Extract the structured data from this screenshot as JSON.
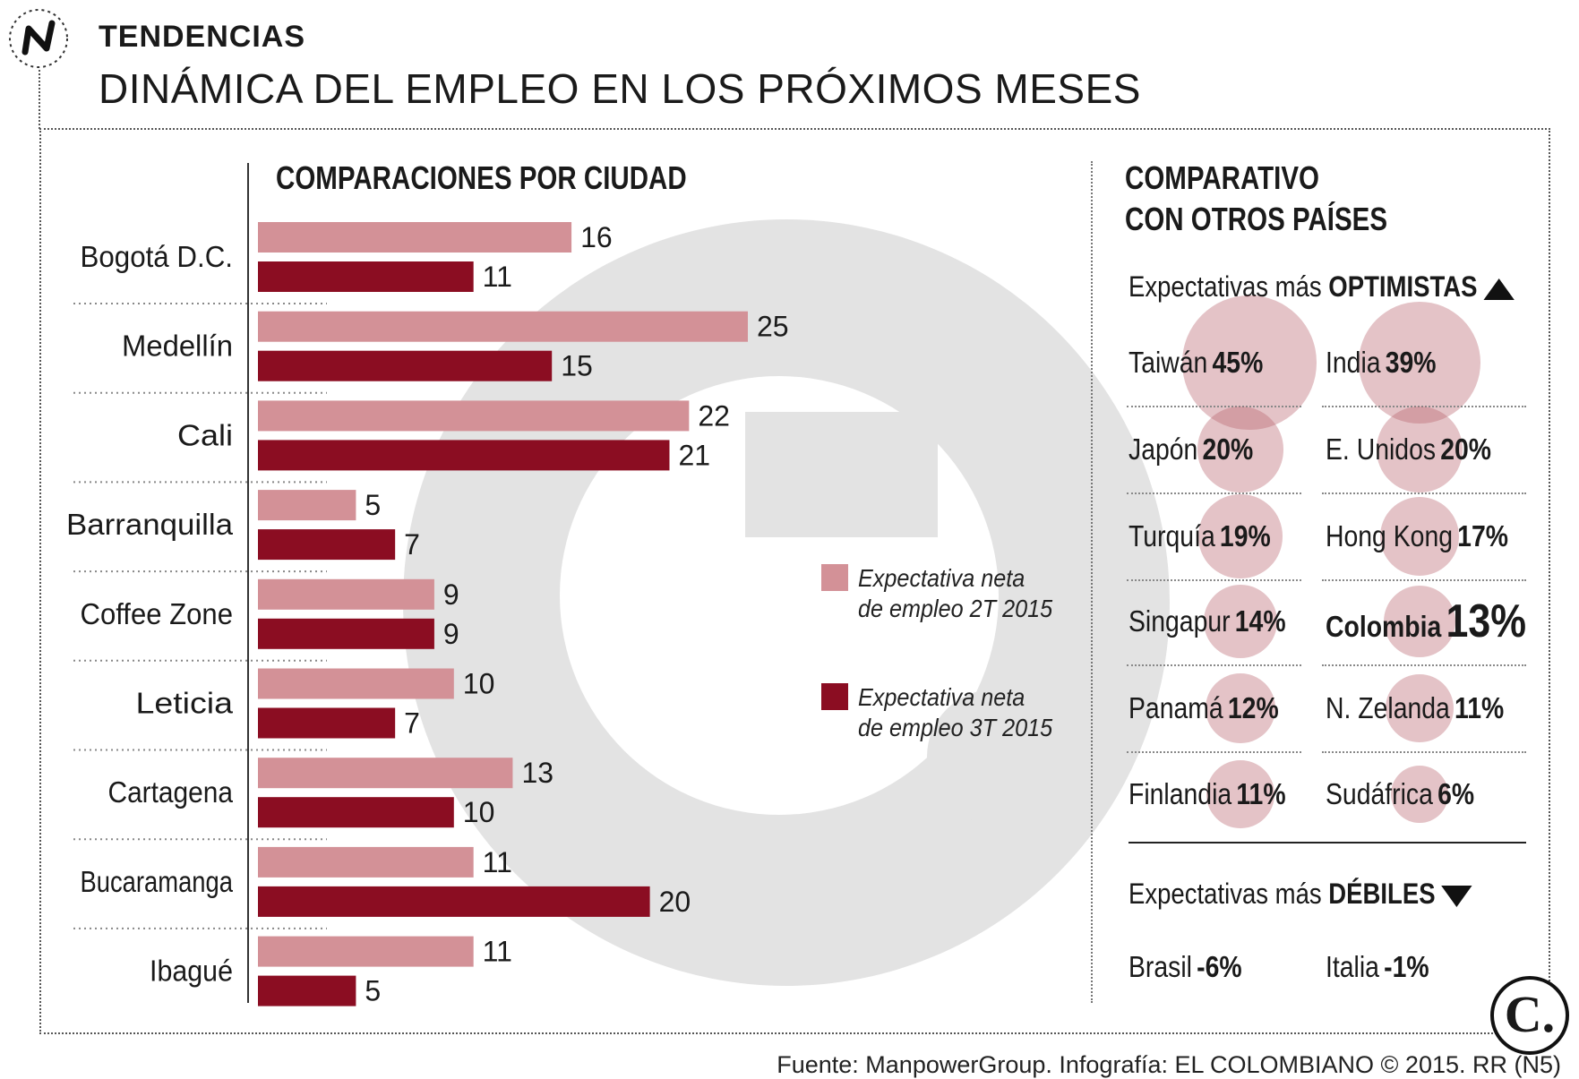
{
  "header": {
    "icon": "trend-line-icon",
    "kicker": "TENDENCIAS",
    "title": "DINÁMICA DEL EMPLEO EN LOS PRÓXIMOS MESES"
  },
  "chart_data": {
    "type": "bar",
    "orientation": "horizontal",
    "title": "COMPARACIONES POR CIUDAD",
    "categories": [
      "Bogotá D.C.",
      "Medellín",
      "Cali",
      "Barranquilla",
      "Coffee Zone",
      "Leticia",
      "Cartagena",
      "Bucaramanga",
      "Ibagué"
    ],
    "series": [
      {
        "name": "Expectativa neta de empleo 2T 2015",
        "color": "#d39197",
        "values": [
          16,
          25,
          22,
          5,
          9,
          10,
          13,
          11,
          11
        ]
      },
      {
        "name": "Expectativa neta de empleo 3T 2015",
        "color": "#8b0d22",
        "values": [
          11,
          15,
          21,
          7,
          9,
          7,
          10,
          20,
          5
        ]
      }
    ],
    "xlim": [
      0,
      25
    ],
    "legend_position": "right",
    "grid": false
  },
  "legend": {
    "q2_line1": "Expectativa neta",
    "q2_line2": "de empleo 2T 2015",
    "q3_line1": "Expectativa neta",
    "q3_line2": "de empleo 3T 2015"
  },
  "countries": {
    "title_line1": "COMPARATIVO",
    "title_line2": "CON OTROS PAÍSES",
    "optimistic_prefix": "Expectativas más",
    "optimistic_bold": "OPTIMISTAS",
    "weak_prefix": "Expectativas más",
    "weak_bold": "DÉBILES",
    "optimistic": [
      {
        "name": "Taiwán",
        "value": "45%",
        "percent": 45
      },
      {
        "name": "India",
        "value": "39%",
        "percent": 39
      },
      {
        "name": "Japón",
        "value": "20%",
        "percent": 20
      },
      {
        "name": "E. Unidos",
        "value": "20%",
        "percent": 20
      },
      {
        "name": "Turquía",
        "value": "19%",
        "percent": 19
      },
      {
        "name": "Hong Kong",
        "value": "17%",
        "percent": 17
      },
      {
        "name": "Singapur",
        "value": "14%",
        "percent": 14
      },
      {
        "name": "Colombia",
        "value": "13%",
        "percent": 13
      },
      {
        "name": "Panamá",
        "value": "12%",
        "percent": 12
      },
      {
        "name": "N. Zelanda",
        "value": "11%",
        "percent": 11
      },
      {
        "name": "Finlandia",
        "value": "11%",
        "percent": 11
      },
      {
        "name": "Sudáfrica",
        "value": "6%",
        "percent": 6
      }
    ],
    "weak": [
      {
        "name": "Brasil",
        "value": "-6%"
      },
      {
        "name": "Italia",
        "value": "-1%"
      }
    ]
  },
  "logo": "C.",
  "source": "Fuente: ManpowerGroup. Infografía: EL COLOMBIANO © 2015. RR (N5)"
}
